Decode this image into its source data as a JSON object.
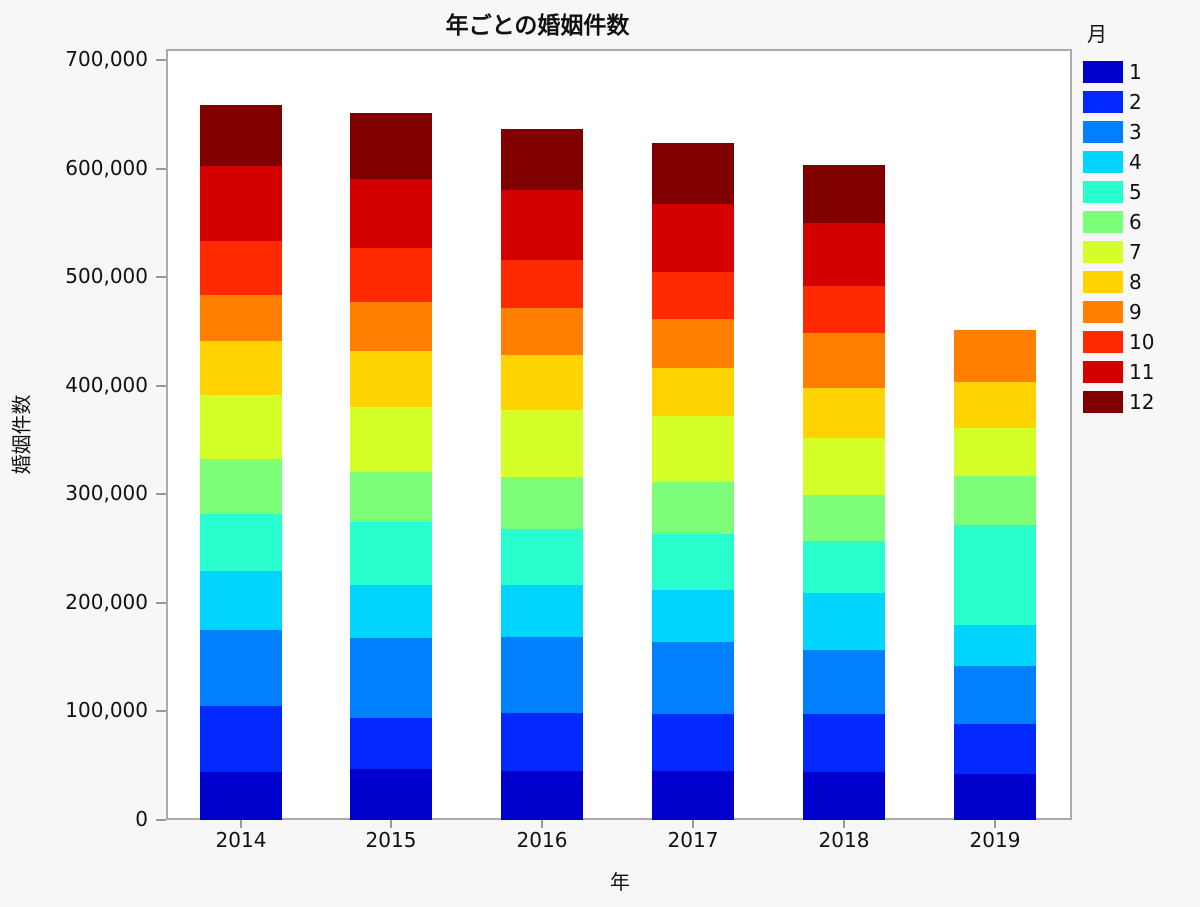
{
  "chart_data": {
    "type": "bar",
    "stacked": true,
    "title": "年ごとの婚姻件数",
    "xlabel": "年",
    "ylabel": "婚姻件数",
    "ylim": [
      0,
      700000
    ],
    "yticks": [
      "0",
      "100,000",
      "200,000",
      "300,000",
      "400,000",
      "500,000",
      "600,000",
      "700,000"
    ],
    "categories": [
      "2014",
      "2015",
      "2016",
      "2017",
      "2018",
      "2019"
    ],
    "legend_title": "月",
    "legend_position": "right",
    "grid": false,
    "series": [
      {
        "name": "1",
        "color": "#0000cd",
        "values": [
          44500,
          47000,
          45100,
          45100,
          44500,
          42600
        ]
      },
      {
        "name": "2",
        "color": "#0028ff",
        "values": [
          60500,
          47200,
          53700,
          52300,
          53400,
          45500
        ]
      },
      {
        "name": "3",
        "color": "#0080ff",
        "values": [
          70000,
          73400,
          70000,
          66500,
          58700,
          53500
        ]
      },
      {
        "name": "4",
        "color": "#00d4ff",
        "values": [
          54300,
          49100,
          47900,
          47700,
          52800,
          37700
        ]
      },
      {
        "name": "5",
        "color": "#29ffce",
        "values": [
          52800,
          58100,
          51300,
          51800,
          47600,
          92700
        ]
      },
      {
        "name": "6",
        "color": "#7dff7a",
        "values": [
          50400,
          45500,
          48200,
          48200,
          42600,
          44800
        ]
      },
      {
        "name": "7",
        "color": "#d4ff29",
        "values": [
          59000,
          60100,
          61700,
          60200,
          52000,
          44000
        ]
      },
      {
        "name": "8",
        "color": "#ffd400",
        "values": [
          49400,
          51900,
          50400,
          44800,
          46600,
          42900
        ]
      },
      {
        "name": "9",
        "color": "#ff8000",
        "values": [
          42900,
          44500,
          43600,
          44600,
          50600,
          47300
        ]
      },
      {
        "name": "10",
        "color": "#ff2a00",
        "values": [
          49800,
          49800,
          43600,
          43500,
          43000,
          0
        ]
      },
      {
        "name": "11",
        "color": "#d40000",
        "values": [
          68800,
          63800,
          64500,
          62400,
          58400,
          0
        ]
      },
      {
        "name": "12",
        "color": "#800000",
        "values": [
          56400,
          60500,
          56700,
          56200,
          52800,
          0
        ]
      }
    ]
  }
}
